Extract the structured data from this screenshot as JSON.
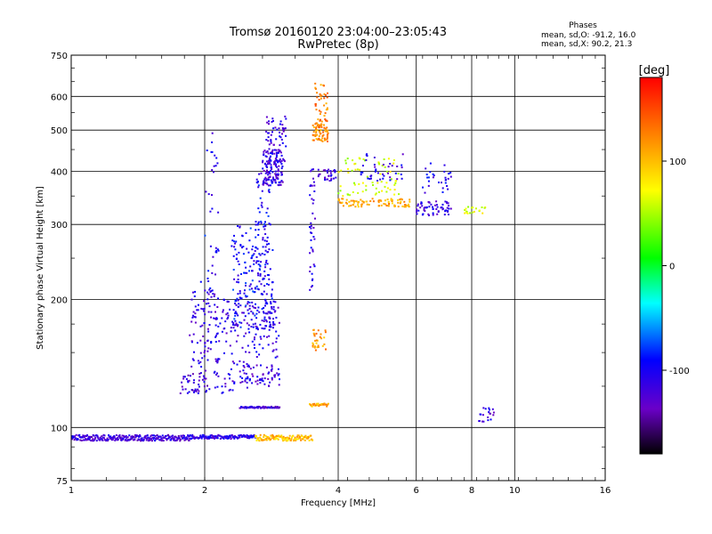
{
  "chart_data": {
    "type": "scatter",
    "title": "Tromsø 20160120 23:04:00–23:05:43",
    "subtitle": "RwPretec (8p)",
    "xlabel": "Frequency [MHz]",
    "ylabel": "Stationary phase Virtual Height [km]",
    "x_scale": "log",
    "y_scale": "log",
    "xlim": [
      1,
      16
    ],
    "ylim": [
      75,
      750
    ],
    "x_ticks": [
      1,
      2,
      4,
      6,
      8,
      10,
      16
    ],
    "x_tick_labels": [
      "1",
      "2",
      "4",
      "6",
      "8",
      "10",
      "16"
    ],
    "y_ticks": [
      75,
      100,
      200,
      300,
      400,
      500,
      600,
      750
    ],
    "y_tick_labels": [
      "75",
      "100",
      "200",
      "300",
      "400",
      "500",
      "600",
      "750"
    ],
    "grid": true,
    "phase_stats": {
      "heading": "Phases",
      "o_line": "mean, sd,O: -91.2, 16.0",
      "x_line": "mean, sd,X:  90.2, 21.3"
    },
    "colorbar": {
      "label": "[deg]",
      "min": -180,
      "max": 180,
      "ticks": [
        100,
        0,
        -100
      ],
      "tick_labels": [
        "100",
        "0",
        "-100"
      ]
    },
    "clusters": [
      {
        "f": [
          1.0,
          1.85
        ],
        "h": [
          93,
          96
        ],
        "phase": -120,
        "n": 260,
        "type": "band"
      },
      {
        "f": [
          1.85,
          2.6
        ],
        "h": [
          94,
          96
        ],
        "phase": -110,
        "n": 120,
        "type": "band"
      },
      {
        "f": [
          2.6,
          3.5
        ],
        "h": [
          93,
          96
        ],
        "phase": 100,
        "n": 110,
        "type": "band"
      },
      {
        "f": [
          2.4,
          2.95
        ],
        "h": [
          111,
          112
        ],
        "phase": -120,
        "n": 60,
        "type": "band"
      },
      {
        "f": [
          2.0,
          2.15
        ],
        "h": [
          200,
          500
        ],
        "phase": -100,
        "n": 40,
        "type": "box"
      },
      {
        "f": [
          1.75,
          2.05
        ],
        "h": [
          120,
          135
        ],
        "phase": -120,
        "n": 45,
        "type": "box"
      },
      {
        "f": [
          1.85,
          2.15
        ],
        "h": [
          135,
          220
        ],
        "phase": -115,
        "n": 90,
        "type": "box"
      },
      {
        "f": [
          2.1,
          2.5
        ],
        "h": [
          120,
          200
        ],
        "phase": -115,
        "n": 100,
        "type": "box"
      },
      {
        "f": [
          2.3,
          2.85
        ],
        "h": [
          170,
          300
        ],
        "phase": -95,
        "n": 180,
        "type": "box"
      },
      {
        "f": [
          2.5,
          2.95
        ],
        "h": [
          145,
          200
        ],
        "phase": -110,
        "n": 90,
        "type": "box"
      },
      {
        "f": [
          2.4,
          2.95
        ],
        "h": [
          125,
          140
        ],
        "phase": -115,
        "n": 60,
        "type": "box"
      },
      {
        "f": [
          2.6,
          2.8
        ],
        "h": [
          220,
          400
        ],
        "phase": -100,
        "n": 60,
        "type": "box"
      },
      {
        "f": [
          2.7,
          3.0
        ],
        "h": [
          370,
          450
        ],
        "phase": -115,
        "n": 130,
        "type": "box"
      },
      {
        "f": [
          2.75,
          3.05
        ],
        "h": [
          420,
          540
        ],
        "phase": -115,
        "n": 70,
        "type": "box"
      },
      {
        "f": [
          3.45,
          3.55
        ],
        "h": [
          210,
          420
        ],
        "phase": -110,
        "n": 40,
        "type": "box"
      },
      {
        "f": [
          3.5,
          3.8
        ],
        "h": [
          470,
          520
        ],
        "phase": 120,
        "n": 70,
        "type": "box"
      },
      {
        "f": [
          3.55,
          3.8
        ],
        "h": [
          520,
          650
        ],
        "phase": 125,
        "n": 40,
        "type": "box"
      },
      {
        "f": [
          3.5,
          3.75
        ],
        "h": [
          150,
          170
        ],
        "phase": 115,
        "n": 30,
        "type": "box"
      },
      {
        "f": [
          3.45,
          3.8
        ],
        "h": [
          112,
          114
        ],
        "phase": 110,
        "n": 25,
        "type": "band"
      },
      {
        "f": [
          3.6,
          3.95
        ],
        "h": [
          380,
          405
        ],
        "phase": -115,
        "n": 30,
        "type": "box"
      },
      {
        "f": [
          4.0,
          5.8
        ],
        "h": [
          330,
          345
        ],
        "phase": 110,
        "n": 90,
        "type": "box"
      },
      {
        "f": [
          4.0,
          5.5
        ],
        "h": [
          350,
          430
        ],
        "phase": 60,
        "n": 70,
        "type": "box"
      },
      {
        "f": [
          4.5,
          5.6
        ],
        "h": [
          380,
          440
        ],
        "phase": -110,
        "n": 40,
        "type": "box"
      },
      {
        "f": [
          6.0,
          7.2
        ],
        "h": [
          315,
          340
        ],
        "phase": -115,
        "n": 60,
        "type": "box"
      },
      {
        "f": [
          6.2,
          7.2
        ],
        "h": [
          350,
          420
        ],
        "phase": -105,
        "n": 30,
        "type": "box"
      },
      {
        "f": [
          7.5,
          8.6
        ],
        "h": [
          318,
          330
        ],
        "phase": 60,
        "n": 20,
        "type": "box"
      },
      {
        "f": [
          8.3,
          9.0
        ],
        "h": [
          103,
          112
        ],
        "phase": -115,
        "n": 20,
        "type": "box"
      }
    ]
  }
}
